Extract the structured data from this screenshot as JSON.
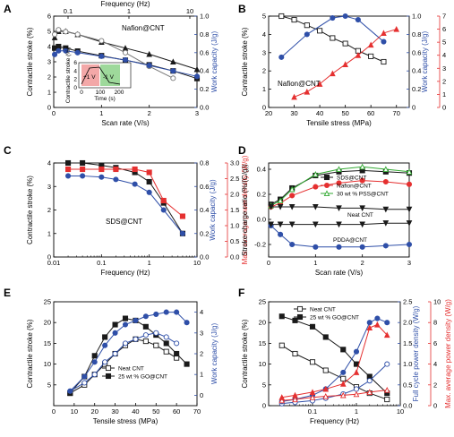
{
  "colors": {
    "black": "#1a1a1a",
    "gray": "#777777",
    "blue": "#2f4fa8",
    "red": "#e53030",
    "green": "#33aa33",
    "inset_red": "#f3a8a8",
    "inset_green": "#9ed99b"
  },
  "chart_data": [
    {
      "panel": "A",
      "type": "line",
      "xlabel": "Scan rate (V/s)",
      "x_top_label": "Frequency (Hz)",
      "ylabel": "Contractile stroke (%)",
      "y2label": "Work capacity (J/g)",
      "xlim": [
        0,
        3
      ],
      "ylim": [
        0,
        6
      ],
      "y2lim": [
        0,
        1.0
      ],
      "x_ticks": [
        "0",
        "1",
        "2",
        "3"
      ],
      "x_top_ticks": [
        "0.1",
        "1",
        "10"
      ],
      "y_ticks": [
        "0",
        "1",
        "2",
        "3",
        "4",
        "5",
        "6"
      ],
      "y2_ticks": [
        "0.0",
        "0.2",
        "0.4",
        "0.6",
        "0.8",
        "1.0"
      ],
      "annotation": "Nafion@CNT",
      "series": [
        {
          "axis": "left",
          "color": "black",
          "marker": "filled-triangle",
          "x": [
            0.02,
            0.1,
            0.25,
            0.5,
            1.0,
            1.5,
            2.0,
            2.5,
            3.0
          ],
          "y": [
            4.6,
            5.0,
            5.0,
            4.8,
            4.3,
            3.9,
            3.5,
            3.0,
            2.5
          ]
        },
        {
          "axis": "left",
          "color": "black",
          "marker": "filled-square",
          "x": [
            0.02,
            0.1,
            0.25,
            0.5,
            1.0,
            1.5,
            2.0,
            2.5,
            3.0
          ],
          "y": [
            3.9,
            4.0,
            3.9,
            3.7,
            3.4,
            3.1,
            2.8,
            2.4,
            1.9
          ]
        },
        {
          "axis": "right",
          "color": "gray",
          "marker": "open-circle",
          "x": [
            0.02,
            0.1,
            0.25,
            0.5,
            1.0,
            1.5,
            2.0,
            2.5
          ],
          "y": [
            0.8,
            0.85,
            0.83,
            0.8,
            0.73,
            0.6,
            0.45,
            0.32
          ]
        },
        {
          "axis": "right",
          "color": "blue",
          "marker": "filled-circle",
          "x": [
            0.02,
            0.1,
            0.25,
            0.5,
            1.0,
            1.5,
            2.0,
            2.5,
            3.0
          ],
          "y": [
            0.58,
            0.62,
            0.62,
            0.6,
            0.56,
            0.52,
            0.46,
            0.4,
            0.34
          ]
        }
      ],
      "inset": {
        "xlabel": "Time (s)",
        "ylabel": "Contractile stroke (%)",
        "x_ticks": [
          "0",
          "100",
          "200"
        ],
        "y_ticks": [
          "0",
          "2",
          "4",
          "6"
        ],
        "label_pos": "+1 V",
        "label_neg": "-1 V"
      }
    },
    {
      "panel": "B",
      "type": "line",
      "xlabel": "Tensile stress (MPa)",
      "ylabel": "Contractile stroke (%)",
      "y2label": "Work capacity (J/g)",
      "y3label": "Contractile efficiency (%)",
      "xlim": [
        20,
        75
      ],
      "ylim": [
        0,
        5
      ],
      "y2lim": [
        0,
        1.0
      ],
      "y3lim": [
        0,
        7
      ],
      "x_ticks": [
        "20",
        "30",
        "40",
        "50",
        "60",
        "70"
      ],
      "y_ticks": [
        "0",
        "1",
        "2",
        "3",
        "4",
        "5"
      ],
      "y2_ticks": [
        "0",
        "0.2",
        "0.4",
        "0.6",
        "0.8",
        "1.0"
      ],
      "y3_ticks": [
        "0",
        "1",
        "2",
        "3",
        "4",
        "5",
        "6",
        "7"
      ],
      "annotation": "Nafion@CNT",
      "series": [
        {
          "axis": "left",
          "color": "black",
          "marker": "open-square",
          "x": [
            25,
            30,
            35,
            40,
            45,
            50,
            55,
            60,
            65
          ],
          "y": [
            5.0,
            4.8,
            4.5,
            4.2,
            3.8,
            3.5,
            3.1,
            2.8,
            2.5
          ]
        },
        {
          "axis": "right",
          "color": "blue",
          "marker": "filled-circle",
          "x": [
            25,
            35,
            45,
            50,
            55,
            65
          ],
          "y": [
            0.55,
            0.8,
            0.98,
            1.0,
            0.96,
            0.72
          ]
        },
        {
          "axis": "right2",
          "color": "red",
          "marker": "filled-triangle",
          "x": [
            30,
            35,
            40,
            45,
            50,
            55,
            60,
            65,
            70
          ],
          "y": [
            0.8,
            1.2,
            1.8,
            2.6,
            3.3,
            4.0,
            4.8,
            5.7,
            6.0
          ]
        }
      ]
    },
    {
      "panel": "C",
      "type": "line",
      "xlabel": "Frequency (Hz)",
      "ylabel": "Contractile stroke (%)",
      "y2label": "Work capacity (J/g)",
      "y3label": "Max. average power density (W/g)",
      "xscale": "log",
      "xlim": [
        0.01,
        10
      ],
      "ylim": [
        0,
        4
      ],
      "y2lim": [
        0,
        0.8
      ],
      "y3lim": [
        0,
        3.0
      ],
      "x_ticks": [
        "0.01",
        "0.1",
        "1",
        "10"
      ],
      "y_ticks": [
        "0",
        "1",
        "2",
        "3",
        "4"
      ],
      "y2_ticks": [
        "0.0",
        "0.2",
        "0.4",
        "0.6",
        "0.8"
      ],
      "y3_ticks": [
        "0.0",
        "0.5",
        "1.0",
        "1.5",
        "2.0",
        "2.5",
        "3.0"
      ],
      "annotation": "SDS@CNT",
      "series": [
        {
          "axis": "left",
          "color": "black",
          "marker": "filled-square",
          "x": [
            0.02,
            0.04,
            0.1,
            0.2,
            0.5,
            1,
            2,
            5
          ],
          "y": [
            4.0,
            4.0,
            3.9,
            3.8,
            3.6,
            3.2,
            2.3,
            1.0
          ]
        },
        {
          "axis": "right",
          "color": "blue",
          "marker": "filled-circle",
          "x": [
            0.02,
            0.04,
            0.1,
            0.2,
            0.5,
            1,
            2,
            5
          ],
          "y": [
            0.69,
            0.69,
            0.68,
            0.66,
            0.62,
            0.55,
            0.4,
            0.2
          ]
        },
        {
          "axis": "right2",
          "color": "red",
          "marker": "filled-square",
          "x": [
            0.02,
            0.04,
            0.1,
            0.2,
            0.5,
            1,
            2,
            5
          ],
          "y": [
            2.8,
            2.8,
            2.8,
            2.8,
            2.8,
            2.7,
            1.8,
            1.3
          ]
        }
      ]
    },
    {
      "panel": "D",
      "type": "line",
      "xlabel": "Scan rate (V/s)",
      "ylabel": "Stroke-charge ratio (%/(C/g))",
      "xlim": [
        0,
        3
      ],
      "ylim": [
        -0.3,
        0.45
      ],
      "x_ticks": [
        "0",
        "1",
        "2",
        "3"
      ],
      "y_ticks": [
        "-0.2",
        "0.0",
        "0.2",
        "0.4"
      ],
      "legend": [
        "SDS@CNT",
        "Nafion@CNT",
        "30 wt % PSS@CNT"
      ],
      "annotations": [
        "Neat CNT",
        "PDDA@CNT"
      ],
      "series": [
        {
          "name": "SDS@CNT",
          "color": "black",
          "marker": "filled-square",
          "x": [
            0.05,
            0.25,
            0.5,
            1.0,
            1.5,
            2.0,
            2.5,
            3.0
          ],
          "y": [
            0.12,
            0.16,
            0.25,
            0.35,
            0.38,
            0.39,
            0.38,
            0.37
          ]
        },
        {
          "name": "Nafion@CNT",
          "color": "red",
          "marker": "filled-circle",
          "x": [
            0.05,
            0.25,
            0.5,
            1.0,
            1.5,
            2.0,
            2.5,
            3.0
          ],
          "y": [
            0.1,
            0.13,
            0.19,
            0.26,
            0.29,
            0.31,
            0.3,
            0.28
          ]
        },
        {
          "name": "30 wt % PSS@CNT",
          "color": "green",
          "marker": "open-triangle",
          "x": [
            0.05,
            0.25,
            0.5,
            1.0,
            1.5,
            2.0,
            2.5,
            3.0
          ],
          "y": [
            0.11,
            0.15,
            0.24,
            0.36,
            0.4,
            0.42,
            0.4,
            0.38
          ]
        },
        {
          "name": "Neat CNT",
          "color": "black",
          "marker": "filled-triangle-down",
          "x": [
            0.05,
            0.25,
            0.5,
            1.0,
            1.5,
            2.0,
            2.5,
            3.0
          ],
          "y": [
            0.1,
            0.1,
            0.1,
            0.1,
            0.09,
            0.09,
            0.08,
            0.08
          ]
        },
        {
          "name": "PDDA@CNT",
          "color": "blue",
          "marker": "filled-circle",
          "x": [
            0.05,
            0.25,
            0.5,
            1.0,
            1.5,
            2.0,
            2.5,
            3.0
          ],
          "y": [
            -0.05,
            -0.12,
            -0.2,
            -0.22,
            -0.22,
            -0.22,
            -0.21,
            -0.2
          ]
        },
        {
          "color": "black",
          "marker": "filled-triangle-down",
          "x": [
            0.05,
            0.25,
            0.5,
            1.0,
            1.5,
            2.0,
            2.5,
            3.0
          ],
          "y": [
            -0.04,
            -0.04,
            -0.04,
            -0.04,
            -0.04,
            -0.04,
            -0.03,
            -0.03
          ]
        }
      ]
    },
    {
      "panel": "E",
      "type": "line",
      "xlabel": "Tensile stress (MPa)",
      "ylabel": "Contractile stroke (%)",
      "y2label": "Work capacity (J/g)",
      "xlim": [
        0,
        70
      ],
      "ylim": [
        0,
        25
      ],
      "y2lim": [
        -0.5,
        4.5
      ],
      "x_ticks": [
        "0",
        "10",
        "20",
        "30",
        "40",
        "50",
        "60",
        "70"
      ],
      "y_ticks": [
        "5",
        "10",
        "15",
        "20",
        "25"
      ],
      "y2_ticks": [
        "0",
        "1",
        "2",
        "3",
        "4"
      ],
      "legend": [
        "Neat CNT",
        "25 wt % GO@CNT"
      ],
      "series": [
        {
          "name": "Neat CNT",
          "axis": "left",
          "color": "black",
          "marker": "open-square",
          "x": [
            8,
            15,
            20,
            25,
            30,
            35,
            40,
            45,
            50,
            55,
            60
          ],
          "y": [
            3.0,
            5.0,
            7.5,
            10.0,
            12.5,
            14.5,
            16.0,
            15.5,
            14.5,
            13.0,
            11.5
          ]
        },
        {
          "name": "25 wt % GO@CNT",
          "axis": "left",
          "color": "black",
          "marker": "filled-square",
          "x": [
            8,
            15,
            20,
            25,
            30,
            35,
            40,
            45,
            50,
            55,
            60,
            65
          ],
          "y": [
            3.0,
            7.0,
            12.0,
            16.5,
            19.5,
            21.0,
            20.5,
            19.0,
            17.0,
            15.0,
            12.5,
            10.0
          ]
        },
        {
          "axis": "right",
          "color": "blue",
          "marker": "open-circle",
          "x": [
            8,
            15,
            20,
            25,
            30,
            35,
            40,
            45,
            50,
            55,
            60
          ],
          "y": [
            0.2,
            0.6,
            1.0,
            1.6,
            2.0,
            2.5,
            2.7,
            2.9,
            3.0,
            2.8,
            2.5
          ]
        },
        {
          "axis": "right",
          "color": "blue",
          "marker": "filled-circle",
          "x": [
            8,
            15,
            20,
            25,
            30,
            35,
            40,
            45,
            50,
            55,
            60,
            65
          ],
          "y": [
            0.2,
            0.9,
            1.6,
            2.4,
            3.0,
            3.4,
            3.6,
            3.8,
            3.9,
            4.0,
            4.0,
            3.5
          ]
        }
      ]
    },
    {
      "panel": "F",
      "type": "line",
      "xlabel": "Frequency (Hz)",
      "ylabel": "Contractile stroke (%)",
      "y2label": "Full cycle power density (W/g)",
      "y3label": "Max. average power density (W/g)",
      "xscale": "log",
      "xlim": [
        0.01,
        10
      ],
      "ylim": [
        0,
        25
      ],
      "y2lim": [
        0,
        2.5
      ],
      "y3lim": [
        0,
        10
      ],
      "x_ticks": [
        "0.1",
        "1",
        "10"
      ],
      "y_ticks": [
        "0",
        "5",
        "10",
        "15",
        "20",
        "25"
      ],
      "y2_ticks": [
        "0.0",
        "0.5",
        "1.0",
        "1.5",
        "2.0",
        "2.5"
      ],
      "y3_ticks": [
        "0",
        "2",
        "4",
        "6",
        "8",
        "10"
      ],
      "legend": [
        "Neat CNT",
        "25 wt % GO@CNT"
      ],
      "series": [
        {
          "name": "Neat CNT",
          "axis": "left",
          "color": "black",
          "marker": "open-square",
          "x": [
            0.02,
            0.04,
            0.1,
            0.2,
            0.5,
            1,
            2,
            5
          ],
          "y": [
            14.5,
            12.5,
            10.5,
            8.5,
            6.5,
            4.5,
            3.0,
            1.5
          ]
        },
        {
          "name": "25 wt % GO@CNT",
          "axis": "left",
          "color": "black",
          "marker": "filled-square",
          "x": [
            0.02,
            0.04,
            0.1,
            0.2,
            0.5,
            1,
            2,
            5
          ],
          "y": [
            21.5,
            20.5,
            19.0,
            16.5,
            13.5,
            10.0,
            7.0,
            3.0
          ]
        },
        {
          "axis": "right",
          "color": "blue",
          "marker": "open-circle",
          "x": [
            0.02,
            0.04,
            0.1,
            0.2,
            0.5,
            1,
            2,
            5
          ],
          "y": [
            0.05,
            0.08,
            0.12,
            0.18,
            0.28,
            0.4,
            0.6,
            1.0
          ]
        },
        {
          "axis": "right",
          "color": "blue",
          "marker": "filled-circle",
          "x": [
            0.02,
            0.04,
            0.1,
            0.2,
            0.5,
            1,
            2,
            3,
            5
          ],
          "y": [
            0.1,
            0.15,
            0.25,
            0.4,
            0.8,
            1.3,
            2.0,
            2.1,
            2.0
          ]
        },
        {
          "axis": "right2",
          "color": "red",
          "marker": "open-triangle",
          "x": [
            0.02,
            0.04,
            0.1,
            0.2,
            0.5,
            1,
            2,
            5
          ],
          "y": [
            0.5,
            0.6,
            0.8,
            0.9,
            1.0,
            1.1,
            1.3,
            1.5
          ]
        },
        {
          "axis": "right2",
          "color": "red",
          "marker": "filled-triangle",
          "x": [
            0.02,
            0.04,
            0.1,
            0.2,
            0.5,
            1,
            2,
            3,
            5
          ],
          "y": [
            0.8,
            1.0,
            1.3,
            1.6,
            2.1,
            3.2,
            7.5,
            7.8,
            6.8
          ]
        }
      ]
    }
  ]
}
